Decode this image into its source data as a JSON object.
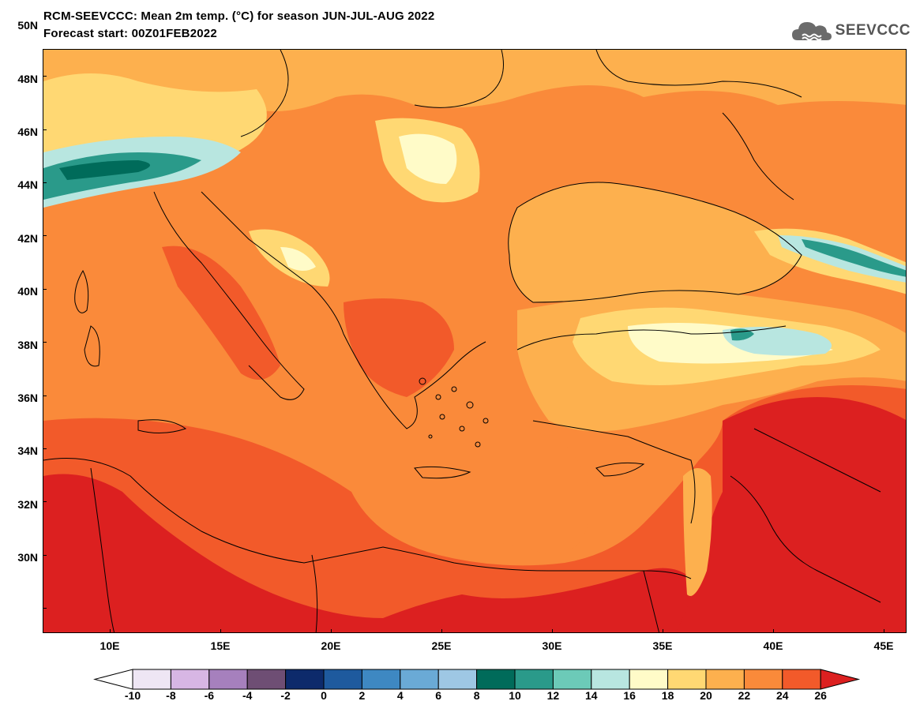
{
  "title_line1": "RCM-SEEVCCC: Mean 2m temp. (°C) for season JUN-JUL-AUG 2022",
  "title_line2": "Forecast start: 00Z01FEB2022",
  "logo_text": "SEEVCCC",
  "lat_labels": [
    "50N",
    "48N",
    "46N",
    "44N",
    "42N",
    "40N",
    "38N",
    "36N",
    "34N",
    "32N",
    "30N"
  ],
  "lon_labels": [
    "10E",
    "15E",
    "20E",
    "25E",
    "30E",
    "35E",
    "40E",
    "45E"
  ],
  "legend": {
    "levels": [
      "-10",
      "-8",
      "-6",
      "-4",
      "-2",
      "0",
      "2",
      "4",
      "6",
      "8",
      "10",
      "12",
      "14",
      "16",
      "18",
      "20",
      "22",
      "24",
      "26"
    ],
    "colors": [
      "#eee6f4",
      "#d7b6e4",
      "#a680bd",
      "#6e4e74",
      "#0d2a6b",
      "#1e5a9e",
      "#3e88c2",
      "#6aaad6",
      "#9ec7e4",
      "#006b5a",
      "#2a9a8a",
      "#6ccab8",
      "#b8e6e0",
      "#fffbc8",
      "#ffd873",
      "#fdb04e",
      "#fa8a3a",
      "#f25a2a",
      "#dc2020"
    ]
  }
}
